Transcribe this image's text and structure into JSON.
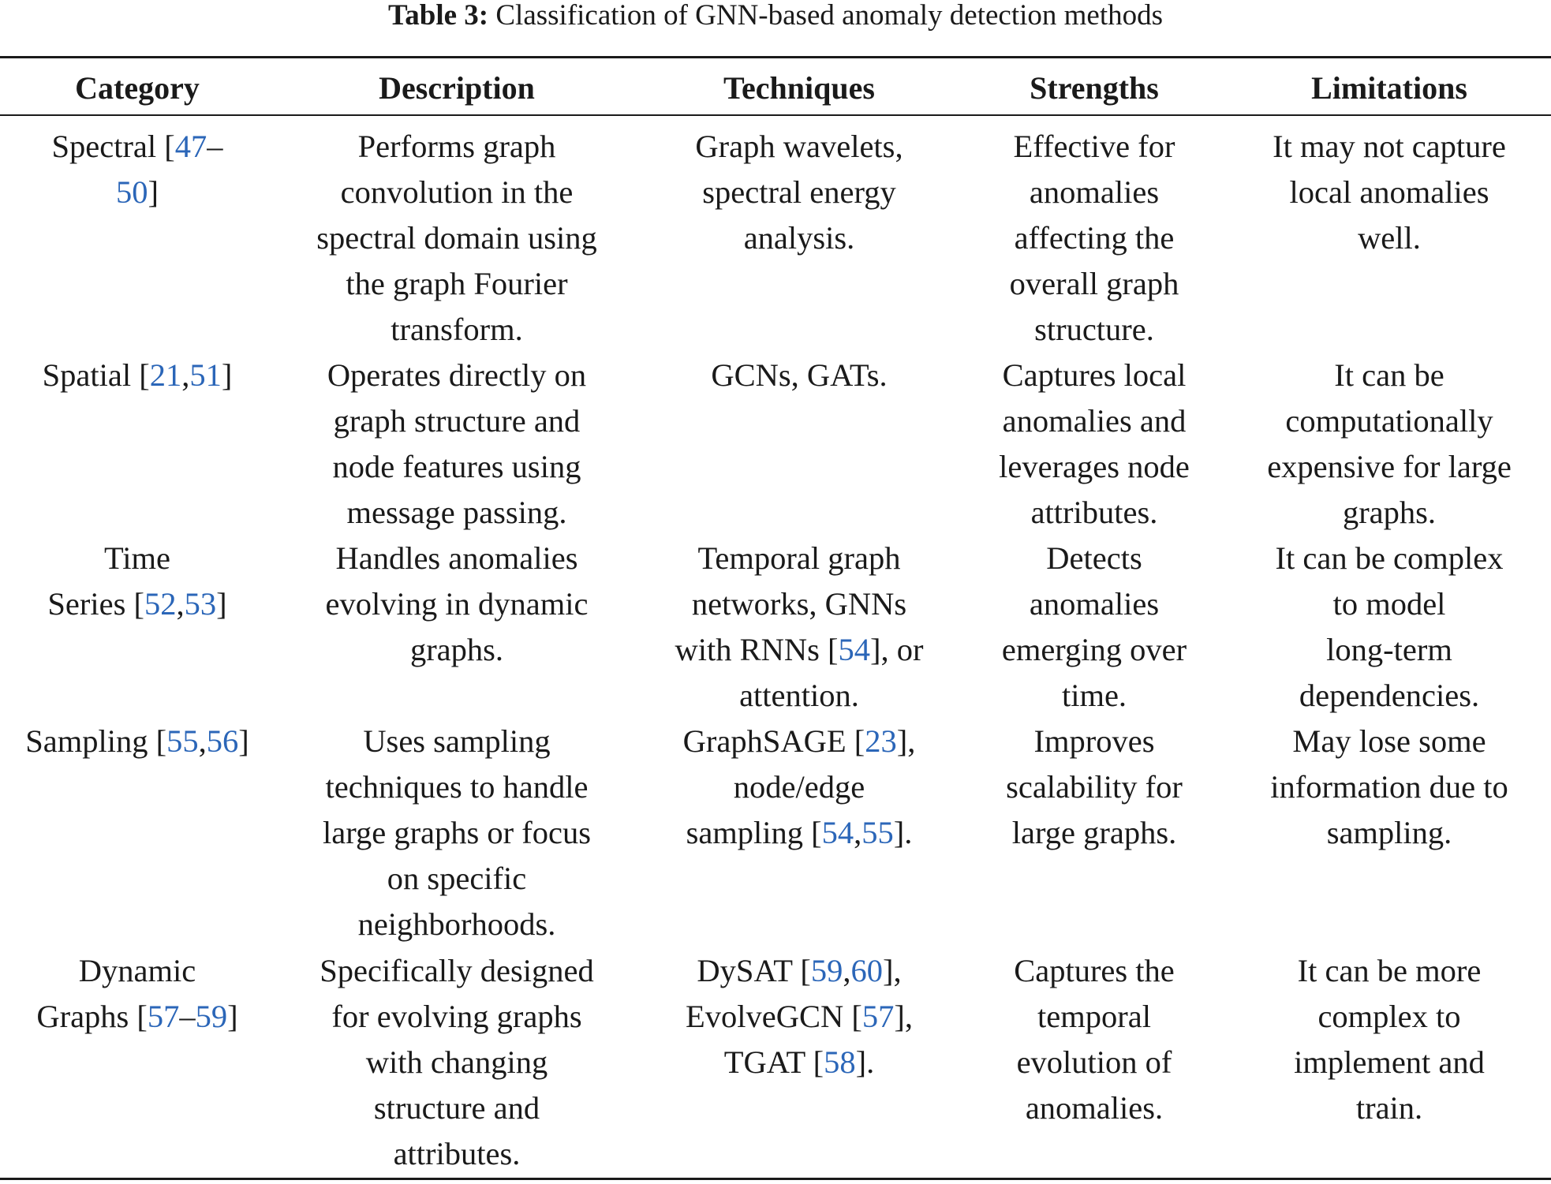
{
  "caption": {
    "label": "Table 3:",
    "text": " Classification of GNN-based anomaly detection methods"
  },
  "colors": {
    "text": "#1a1a1a",
    "reference_link": "#2b66b8",
    "rule": "#1a1a1a"
  },
  "table": {
    "headers": [
      "Category",
      "Description",
      "Techniques",
      "Strengths",
      "Limitations"
    ],
    "rows": [
      {
        "category": {
          "name": "Spectral [",
          "ref1": "47",
          "mid": "–\n",
          "ref2": "50",
          "end": "]"
        },
        "description": "Performs graph\nconvolution in the\nspectral domain using\nthe graph Fourier\ntransform.",
        "techniques": {
          "text": "Graph wavelets,\nspectral energy\nanalysis."
        },
        "strengths": "Effective for\nanomalies\naffecting the\noverall graph\nstructure.",
        "limitations": "It may not capture\nlocal anomalies\nwell."
      },
      {
        "category": {
          "name": "Spatial [",
          "ref1": "21",
          "mid": ",",
          "ref2": "51",
          "end": "]"
        },
        "description": "Operates directly on\ngraph structure and\nnode features using\nmessage passing.",
        "techniques": {
          "text": "GCNs, GATs."
        },
        "strengths": "Captures local\nanomalies and\nleverages node\nattributes.",
        "limitations": "It can be\ncomputationally\nexpensive for large\ngraphs."
      },
      {
        "category": {
          "name": "Time\nSeries [",
          "ref1": "52",
          "mid": ",",
          "ref2": "53",
          "end": "]"
        },
        "description": "Handles anomalies\nevolving in dynamic\ngraphs.",
        "techniques": {
          "pre": "Temporal graph\nnetworks, GNNs\nwith RNNs [",
          "ref1": "54",
          "post": "], or\nattention."
        },
        "strengths": "Detects\nanomalies\nemerging over\ntime.",
        "limitations": "It can be complex\nto model\nlong-term\ndependencies."
      },
      {
        "category": {
          "name": "Sampling [",
          "ref1": "55",
          "mid": ",",
          "ref2": "56",
          "end": "]"
        },
        "description": "Uses sampling\ntechniques to handle\nlarge graphs or focus\non specific\nneighborhoods.",
        "techniques": {
          "pre": "GraphSAGE [",
          "ref1": "23",
          "mid1": "],\nnode/edge\nsampling [",
          "ref2": "54",
          "mid2": ",",
          "ref3": "55",
          "post": "]."
        },
        "strengths": "Improves\nscalability for\nlarge graphs.",
        "limitations": "May lose some\ninformation due to\nsampling."
      },
      {
        "category": {
          "name": "Dynamic\nGraphs [",
          "ref1": "57",
          "mid": "–",
          "ref2": "59",
          "end": "]"
        },
        "description": "Specifically designed\nfor evolving graphs\nwith changing\nstructure and\nattributes.",
        "techniques": {
          "pre": "DySAT [",
          "ref1": "59",
          "mid1": ",",
          "ref2": "60",
          "mid2": "],\nEvolveGCN [",
          "ref3": "57",
          "mid3": "],\nTGAT [",
          "ref4": "58",
          "post": "]."
        },
        "strengths": "Captures the\ntemporal\nevolution of\nanomalies.",
        "limitations": "It can be more\ncomplex to\nimplement and\ntrain."
      }
    ]
  }
}
